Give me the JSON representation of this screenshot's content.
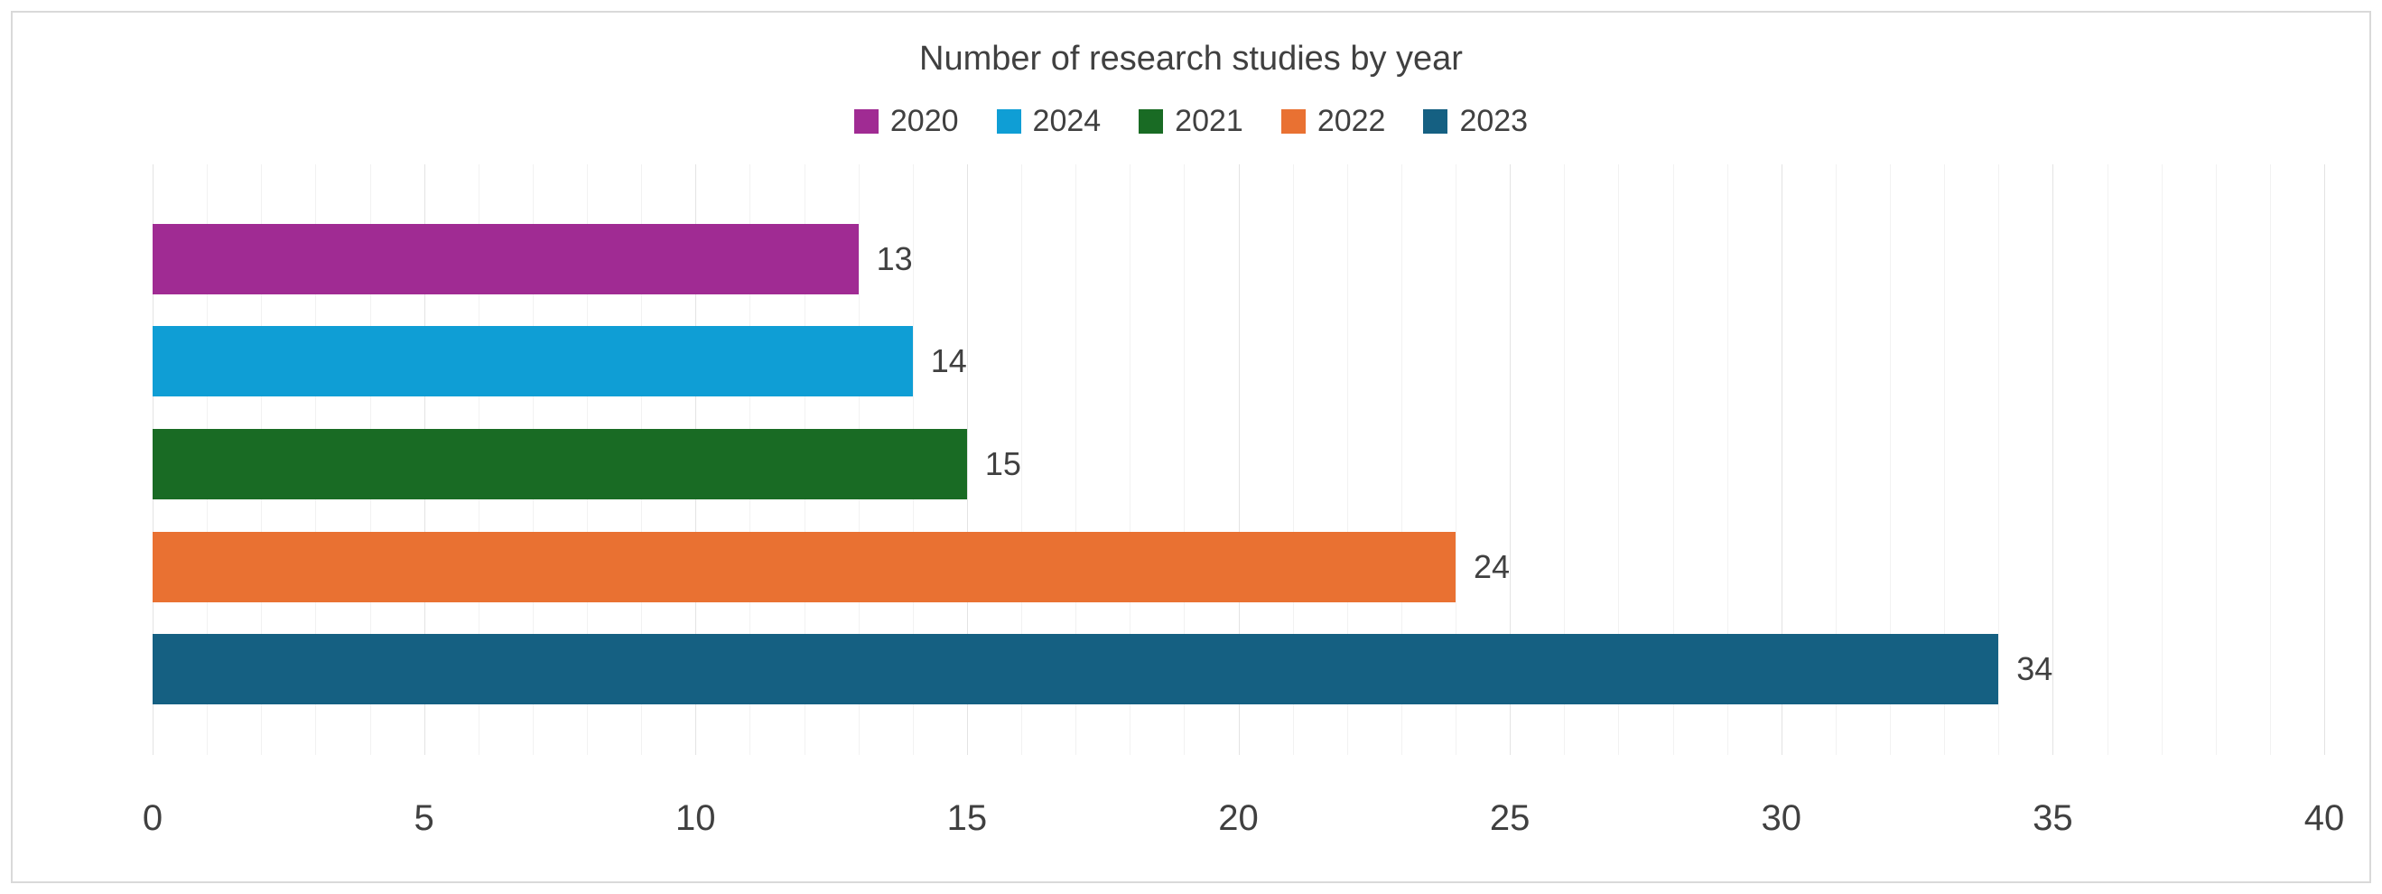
{
  "chart_data": {
    "type": "bar",
    "orientation": "horizontal",
    "title": "Number of research studies by year",
    "legend_position": "top",
    "grid": true,
    "xlim": [
      0,
      40
    ],
    "x_ticks": [
      0,
      5,
      10,
      15,
      20,
      25,
      30,
      35,
      40
    ],
    "minor_grid_step": 1,
    "major_grid_step": 5,
    "bars": [
      {
        "label": "2020",
        "value": 13,
        "color": "#A02B93"
      },
      {
        "label": "2024",
        "value": 14,
        "color": "#0F9ED5"
      },
      {
        "label": "2021",
        "value": 15,
        "color": "#196B24"
      },
      {
        "label": "2022",
        "value": 24,
        "color": "#E97132"
      },
      {
        "label": "2023",
        "value": 34,
        "color": "#156082"
      }
    ],
    "colors": {
      "title_text": "#404040",
      "axis_text": "#404040",
      "gridline_minor": "#F2F2F2",
      "gridline_major": "#E3E3E3",
      "frame_border": "#D9D9D9",
      "background": "#FFFFFF"
    }
  }
}
